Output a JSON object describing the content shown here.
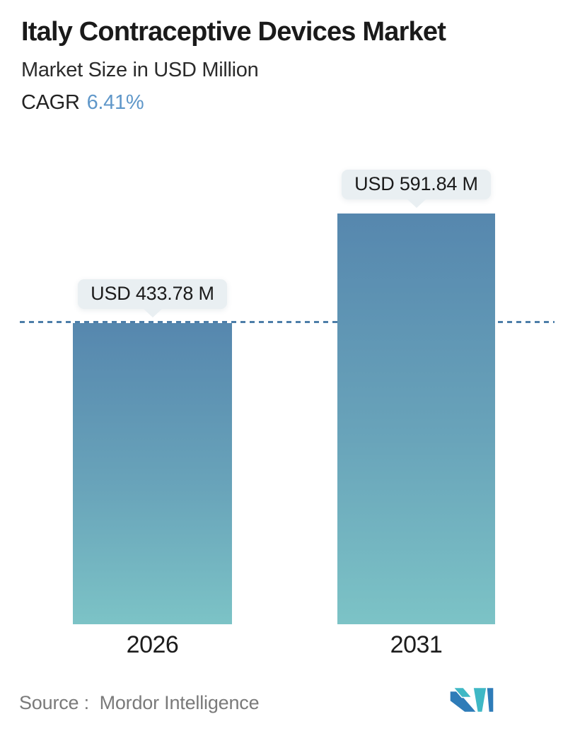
{
  "header": {
    "title": "Italy Contraceptive Devices Market",
    "subtitle": "Market Size in USD Million",
    "cagr_label": "CAGR",
    "cagr_value": "6.41%"
  },
  "chart_data": {
    "type": "bar",
    "title": "Italy Contraceptive Devices Market",
    "ylabel": "Market Size in USD Million",
    "xlabel": "",
    "unit": "USD Million",
    "cagr_percent": 6.41,
    "categories": [
      "2026",
      "2031"
    ],
    "values": [
      433.78,
      591.84
    ],
    "value_labels": [
      "USD 433.78 M",
      "USD 591.84 M"
    ],
    "reference_line": {
      "style": "dashed",
      "at_value": 433.78,
      "color": "#4d7ea8"
    },
    "axes_visible": false,
    "grid": false,
    "legend": false,
    "bar_gradient_top": "#5687ae",
    "bar_gradient_bottom": "#7cc3c6",
    "tooltip_background": "#e9eff2"
  },
  "footer": {
    "source_prefix": "Source :",
    "source_name": "Mordor Intelligence",
    "logo_name": "mordor-intelligence-logo",
    "logo_blue": "#2e7cb8",
    "logo_teal": "#3fb8c5"
  },
  "colors": {
    "accent_blue_text": "#5f97c9",
    "dark_text": "#1a1a1a",
    "muted_text": "#7a7a7a",
    "background": "#ffffff"
  }
}
